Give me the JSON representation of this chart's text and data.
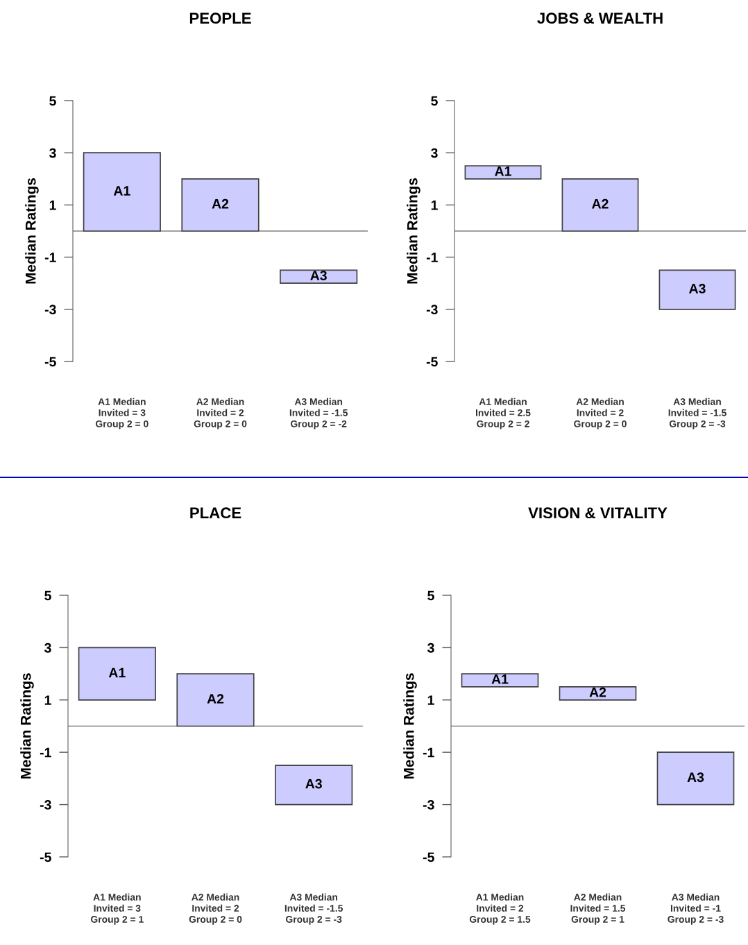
{
  "chart_data": [
    {
      "type": "bar",
      "title": "PEOPLE",
      "ylabel": "Median Ratings",
      "categories": [
        "A1",
        "A2",
        "A3"
      ],
      "base": [
        0,
        0,
        -2
      ],
      "values": [
        3,
        2,
        0.5
      ],
      "color": "#ccccff",
      "ylim": [
        -5,
        5
      ],
      "yticks": [
        5,
        3,
        1,
        -1,
        -3,
        -5
      ],
      "ref_lines": [
        {
          "axis": "y",
          "value": 0,
          "color": "#808080"
        }
      ],
      "grid": false,
      "legend": false,
      "tick_labels": "y",
      "annotations": [
        "A1 Median\nInvited = 3\nGroup 2 = 0",
        "A2 Median\nInvited = 2\nGroup 2 = 0",
        "A3 Median\nInvited = -1.5\nGroup 2 = -2"
      ]
    },
    {
      "type": "bar",
      "title": "JOBS & WEALTH",
      "ylabel": "Median Ratings",
      "categories": [
        "A1",
        "A2",
        "A3"
      ],
      "base": [
        2,
        0,
        -3
      ],
      "values": [
        0.5,
        2,
        1.5
      ],
      "color": "#ccccff",
      "ylim": [
        -5,
        5
      ],
      "yticks": [
        5,
        3,
        1,
        -1,
        -3,
        -5
      ],
      "ref_lines": [
        {
          "axis": "y",
          "value": 0,
          "color": "#808080"
        }
      ],
      "grid": false,
      "legend": false,
      "tick_labels": "y",
      "annotations": [
        "A1 Median\nInvited = 2.5\nGroup 2 = 2",
        "A2 Median\nInvited = 2\nGroup 2 = 0",
        "A3 Median\nInvited = -1.5\nGroup 2 = -3"
      ]
    },
    {
      "type": "bar",
      "title": "PLACE",
      "ylabel": "Median Ratings",
      "categories": [
        "A1",
        "A2",
        "A3"
      ],
      "base": [
        1,
        0,
        -3
      ],
      "values": [
        2,
        2,
        1.5
      ],
      "color": "#ccccff",
      "ylim": [
        -5,
        5
      ],
      "yticks": [
        5,
        3,
        1,
        -1,
        -3,
        -5
      ],
      "ref_lines": [
        {
          "axis": "y",
          "value": 0,
          "color": "#808080"
        }
      ],
      "grid": false,
      "legend": false,
      "tick_labels": "y",
      "annotations": [
        "A1 Median\nInvited = 3\nGroup 2 = 1",
        "A2 Median\nInvited = 2\nGroup 2 = 0",
        "A3 Median\nInvited = -1.5\nGroup 2 = -3"
      ]
    },
    {
      "type": "bar",
      "title": "VISION & VITALITY",
      "ylabel": "Median Ratings",
      "categories": [
        "A1",
        "A2",
        "A3"
      ],
      "base": [
        1.5,
        1,
        -3
      ],
      "values": [
        0.5,
        0.5,
        2
      ],
      "color": "#ccccff",
      "ylim": [
        -5,
        5
      ],
      "yticks": [
        5,
        3,
        1,
        -1,
        -3,
        -5
      ],
      "ref_lines": [
        {
          "axis": "y",
          "value": 0,
          "color": "#808080"
        }
      ],
      "grid": false,
      "legend": false,
      "tick_labels": "y",
      "annotations": [
        "A1 Median\nInvited = 2\nGroup 2 = 1.5",
        "A2 Median\nInvited = 1.5\nGroup 2 = 1",
        "A3 Median\nInvited = -1\nGroup 2 = -3"
      ]
    }
  ]
}
